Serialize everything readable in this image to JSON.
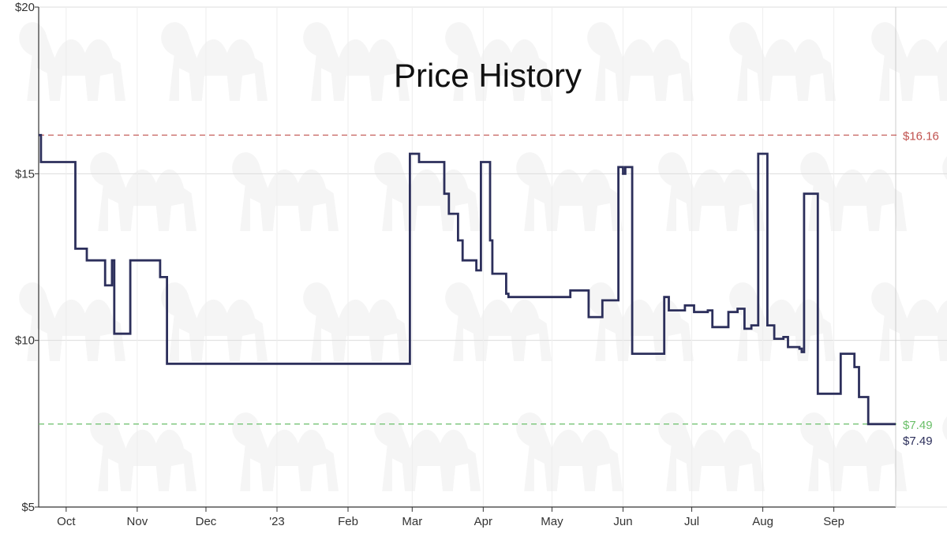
{
  "chart_data": {
    "type": "line",
    "title": "Price History",
    "xlabel": "",
    "ylabel": "",
    "ylim": [
      5,
      20
    ],
    "xlim": [
      "2022-09-19",
      "2023-09-28"
    ],
    "step": true,
    "grid": true,
    "y_ticks": [
      {
        "value": 5,
        "label": "$5"
      },
      {
        "value": 10,
        "label": "$10"
      },
      {
        "value": 15,
        "label": "$15"
      },
      {
        "value": 20,
        "label": "$20"
      }
    ],
    "x_ticks": [
      {
        "date": "2022-10-01",
        "label": "Oct"
      },
      {
        "date": "2022-11-01",
        "label": "Nov"
      },
      {
        "date": "2022-12-01",
        "label": "Dec"
      },
      {
        "date": "2023-01-01",
        "label": "'23"
      },
      {
        "date": "2023-02-01",
        "label": "Feb"
      },
      {
        "date": "2023-03-01",
        "label": "Mar"
      },
      {
        "date": "2023-04-01",
        "label": "Apr"
      },
      {
        "date": "2023-05-01",
        "label": "May"
      },
      {
        "date": "2023-06-01",
        "label": "Jun"
      },
      {
        "date": "2023-07-01",
        "label": "Jul"
      },
      {
        "date": "2023-08-01",
        "label": "Aug"
      },
      {
        "date": "2023-09-01",
        "label": "Sep"
      }
    ],
    "reference_lines": [
      {
        "label": "$16.16",
        "value": 16.16,
        "color": "#c0504d"
      },
      {
        "label": "$7.49",
        "value": 7.49,
        "color": "#6abf69"
      }
    ],
    "series": [
      {
        "color": "#2c2f5b",
        "end_label": "$7.49",
        "points": [
          [
            "2022-09-19",
            16.16
          ],
          [
            "2022-09-20",
            15.35
          ],
          [
            "2022-10-05",
            12.75
          ],
          [
            "2022-10-10",
            12.4
          ],
          [
            "2022-10-18",
            11.65
          ],
          [
            "2022-10-21",
            12.4
          ],
          [
            "2022-10-22",
            10.2
          ],
          [
            "2022-10-29",
            12.4
          ],
          [
            "2022-11-11",
            11.9
          ],
          [
            "2022-11-14",
            9.3
          ],
          [
            "2023-02-28",
            15.6
          ],
          [
            "2023-03-04",
            15.35
          ],
          [
            "2023-03-15",
            14.4
          ],
          [
            "2023-03-17",
            13.8
          ],
          [
            "2023-03-21",
            13.0
          ],
          [
            "2023-03-23",
            12.4
          ],
          [
            "2023-03-29",
            12.1
          ],
          [
            "2023-03-31",
            15.35
          ],
          [
            "2023-04-04",
            13.0
          ],
          [
            "2023-04-05",
            12.0
          ],
          [
            "2023-04-11",
            11.4
          ],
          [
            "2023-04-12",
            11.3
          ],
          [
            "2023-05-09",
            11.5
          ],
          [
            "2023-05-17",
            10.7
          ],
          [
            "2023-05-23",
            11.2
          ],
          [
            "2023-05-30",
            15.2
          ],
          [
            "2023-06-01",
            15.0
          ],
          [
            "2023-06-02",
            15.2
          ],
          [
            "2023-06-05",
            9.6
          ],
          [
            "2023-06-19",
            11.3
          ],
          [
            "2023-06-21",
            10.9
          ],
          [
            "2023-06-28",
            11.05
          ],
          [
            "2023-07-02",
            10.85
          ],
          [
            "2023-07-08",
            10.9
          ],
          [
            "2023-07-10",
            10.4
          ],
          [
            "2023-07-17",
            10.85
          ],
          [
            "2023-07-21",
            10.95
          ],
          [
            "2023-07-24",
            10.35
          ],
          [
            "2023-07-27",
            10.45
          ],
          [
            "2023-07-30",
            15.6
          ],
          [
            "2023-08-03",
            10.45
          ],
          [
            "2023-08-06",
            10.05
          ],
          [
            "2023-08-10",
            10.1
          ],
          [
            "2023-08-12",
            9.8
          ],
          [
            "2023-08-17",
            9.75
          ],
          [
            "2023-08-18",
            9.65
          ],
          [
            "2023-08-19",
            14.4
          ],
          [
            "2023-08-25",
            8.4
          ],
          [
            "2023-09-04",
            9.6
          ],
          [
            "2023-09-10",
            9.2
          ],
          [
            "2023-09-12",
            8.3
          ],
          [
            "2023-09-16",
            7.49
          ],
          [
            "2023-09-28",
            7.49
          ]
        ]
      }
    ]
  }
}
